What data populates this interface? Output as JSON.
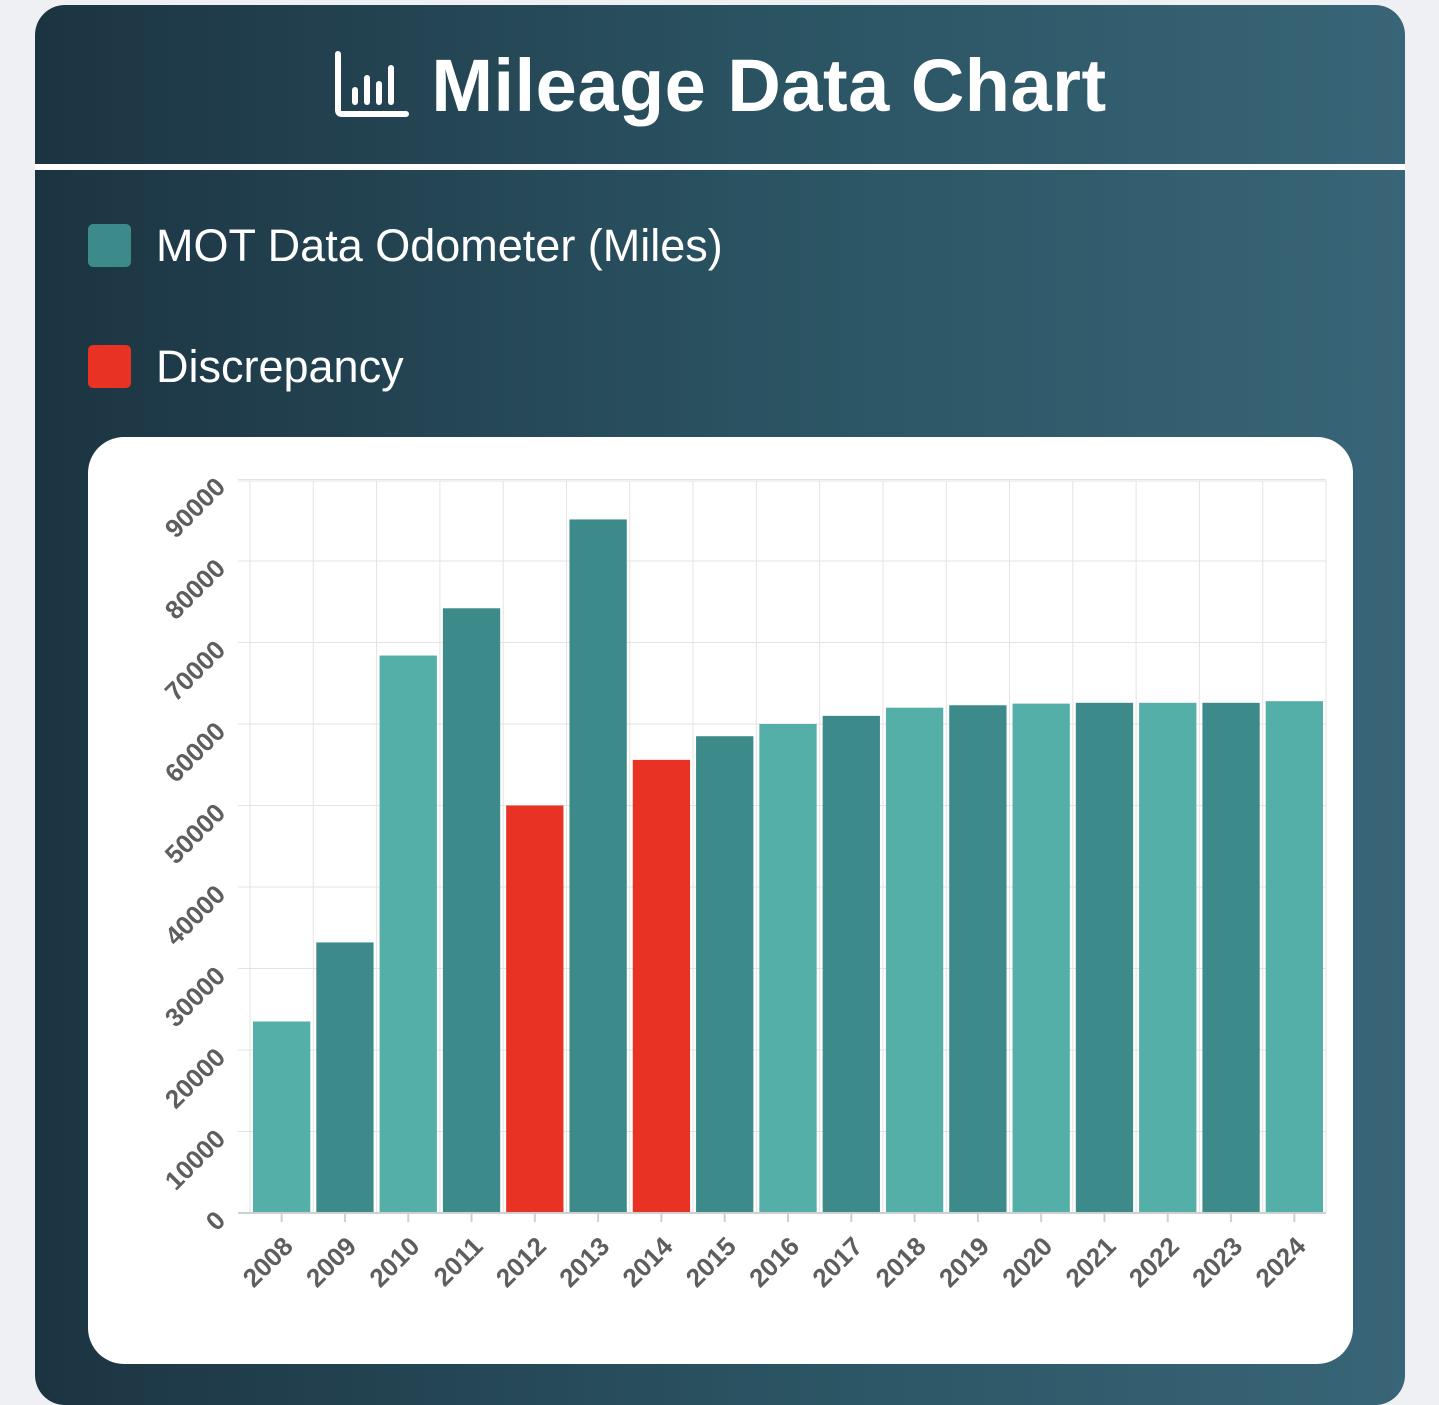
{
  "header": {
    "title": "Mileage Data Chart",
    "icon": "bar-chart-icon"
  },
  "legend": {
    "items": [
      {
        "label": "MOT Data Odometer (Miles)",
        "color": "#3d8a8a"
      },
      {
        "label": "Discrepancy",
        "color": "#e83324"
      }
    ]
  },
  "colors": {
    "normal_primary": "#3d8a8a",
    "normal_alternate": "#53afa7",
    "discrepancy": "#e83324",
    "grid": "#e3e3e3"
  },
  "chart_data": {
    "type": "bar",
    "title": "Mileage Data Chart",
    "xlabel": "",
    "ylabel": "",
    "ylim": [
      0,
      90000
    ],
    "grid": true,
    "legend_placement": "top-left",
    "categories": [
      "2008",
      "2009",
      "2010",
      "2011",
      "2012",
      "2013",
      "2014",
      "2015",
      "2016",
      "2017",
      "2018",
      "2019",
      "2020",
      "2021",
      "2022",
      "2023",
      "2024"
    ],
    "series": [
      {
        "name": "MOT Data Odometer (Miles)",
        "values": [
          23500,
          33200,
          68400,
          74200,
          50000,
          85100,
          55600,
          58500,
          60000,
          61000,
          62000,
          62300,
          62500,
          62600,
          62600,
          62600,
          62800
        ]
      }
    ],
    "discrepancy": [
      false,
      false,
      false,
      false,
      true,
      false,
      true,
      false,
      false,
      false,
      false,
      false,
      false,
      false,
      false,
      false,
      false
    ],
    "yticks": [
      "0",
      "10000",
      "20000",
      "30000",
      "40000",
      "50000",
      "60000",
      "70000",
      "80000",
      "90000"
    ]
  }
}
